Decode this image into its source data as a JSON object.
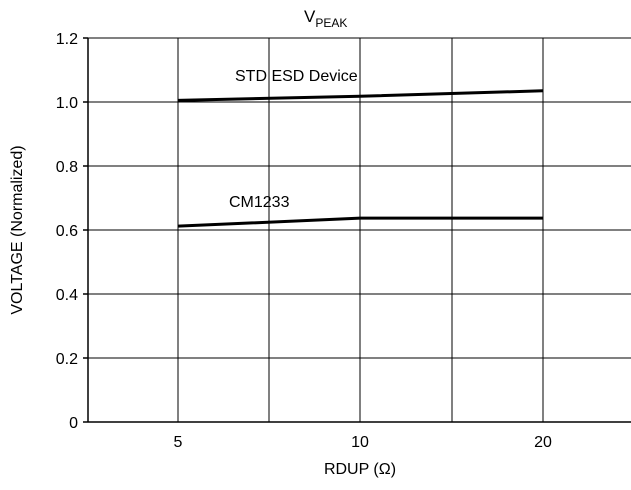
{
  "chart_data": {
    "type": "line",
    "title": {
      "main": "V",
      "subscript": "PEAK"
    },
    "xlabel": "RDUP (Ω)",
    "ylabel": "VOLTAGE (Normalized)",
    "x_ticks": [
      "5",
      "10",
      "20"
    ],
    "y_ticks": [
      "0",
      "0.2",
      "0.4",
      "0.6",
      "0.8",
      "1.0",
      "1.2"
    ],
    "y_tick_values": [
      0,
      0.2,
      0.4,
      0.6,
      0.8,
      1.0,
      1.2
    ],
    "ylim": [
      0,
      1.2
    ],
    "grid": true,
    "series": [
      {
        "name": "STD ESD Device",
        "x": [
          "5",
          "10",
          "20"
        ],
        "values": [
          1.005,
          1.018,
          1.035
        ]
      },
      {
        "name": "CM1233",
        "x": [
          "5",
          "10",
          "20"
        ],
        "values": [
          0.612,
          0.637,
          0.637
        ]
      }
    ]
  }
}
